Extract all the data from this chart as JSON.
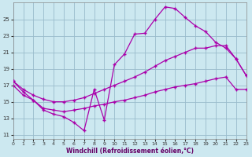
{
  "xlabel": "Windchill (Refroidissement éolien,°C)",
  "bg_color": "#cce8f0",
  "line_color": "#aa00aa",
  "grid_color": "#99bbcc",
  "x_ticks": [
    0,
    1,
    2,
    3,
    4,
    5,
    6,
    7,
    8,
    9,
    10,
    11,
    12,
    13,
    14,
    15,
    16,
    17,
    18,
    19,
    20,
    21,
    22,
    23
  ],
  "y_ticks": [
    11,
    13,
    15,
    17,
    19,
    21,
    23,
    25
  ],
  "xlim": [
    0,
    23
  ],
  "ylim": [
    10.5,
    27.0
  ],
  "line1_x": [
    0,
    1,
    2,
    3,
    4,
    5,
    6,
    7,
    8,
    9,
    10,
    11,
    12,
    13,
    14,
    15,
    16,
    17,
    18,
    19,
    20,
    21,
    22,
    23
  ],
  "line1_y": [
    17.5,
    16.2,
    15.2,
    14.0,
    13.5,
    13.2,
    12.5,
    11.5,
    16.5,
    12.8,
    19.5,
    20.8,
    23.2,
    23.3,
    25.0,
    26.5,
    26.3,
    25.2,
    24.2,
    23.5,
    22.2,
    21.5,
    20.2,
    18.2
  ],
  "line2_x": [
    0,
    1,
    2,
    3,
    4,
    5,
    6,
    7,
    8,
    9,
    10,
    11,
    12,
    13,
    14,
    15,
    16,
    17,
    18,
    19,
    20,
    21,
    22,
    23
  ],
  "line2_y": [
    17.5,
    16.5,
    15.8,
    15.3,
    15.0,
    15.0,
    15.2,
    15.5,
    16.0,
    16.5,
    17.0,
    17.5,
    18.0,
    18.6,
    19.3,
    20.0,
    20.5,
    21.0,
    21.5,
    21.5,
    21.8,
    21.8,
    20.2,
    18.2
  ],
  "line3_x": [
    0,
    1,
    2,
    3,
    4,
    5,
    6,
    7,
    8,
    9,
    10,
    11,
    12,
    13,
    14,
    15,
    16,
    17,
    18,
    19,
    20,
    21,
    22,
    23
  ],
  "line3_y": [
    17.0,
    15.8,
    15.2,
    14.2,
    14.0,
    13.8,
    14.0,
    14.2,
    14.5,
    14.7,
    15.0,
    15.2,
    15.5,
    15.8,
    16.2,
    16.5,
    16.8,
    17.0,
    17.2,
    17.5,
    17.8,
    18.0,
    16.5,
    16.5
  ]
}
